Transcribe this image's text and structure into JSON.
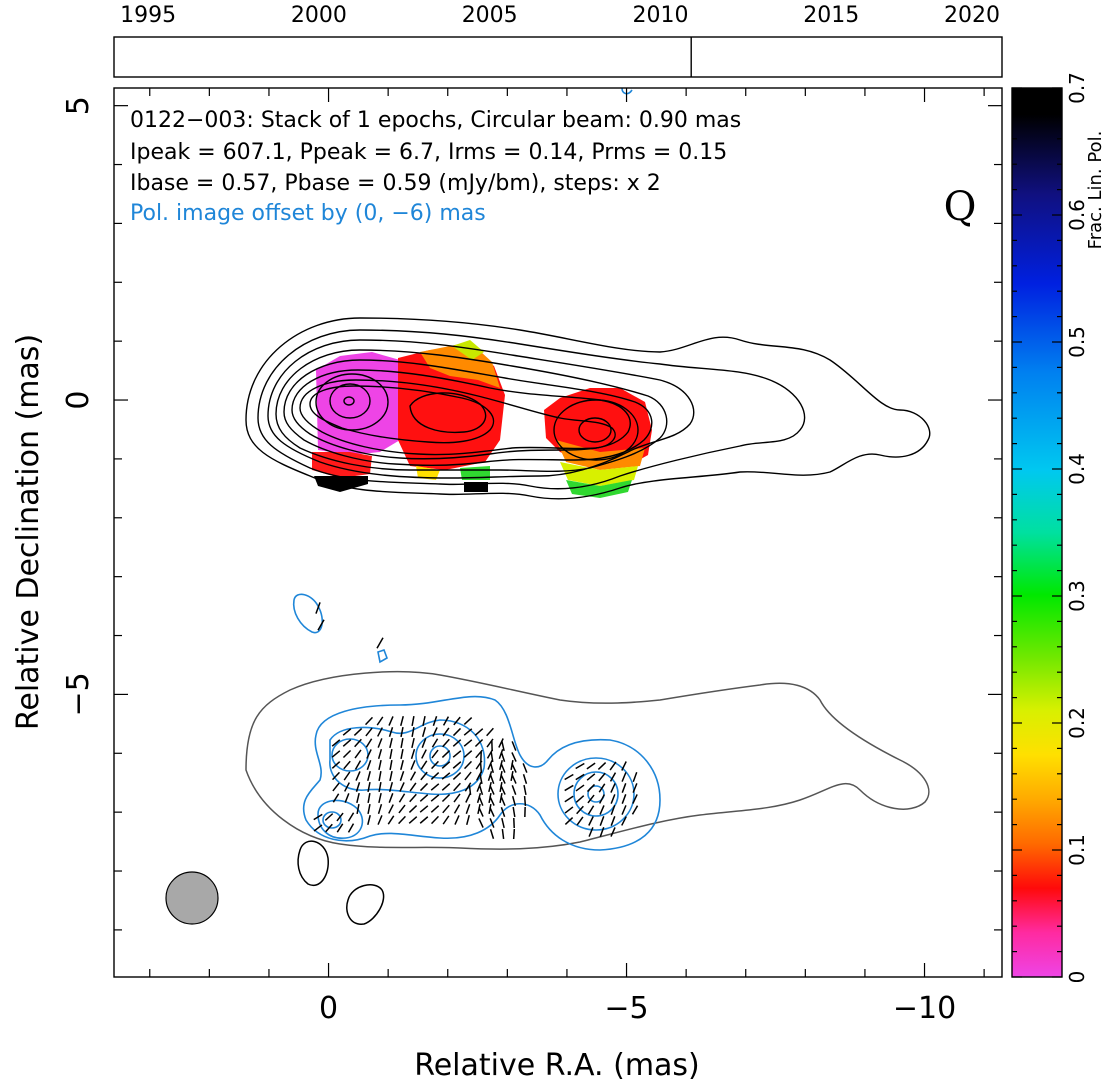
{
  "chart_data": [
    {
      "type": "image",
      "panel": "timeline",
      "x_ticks": [
        1995,
        2000,
        2005,
        2010,
        2015,
        2020
      ],
      "xlim": [
        1994,
        2020
      ],
      "epochs": [
        2010.9
      ]
    },
    {
      "type": "contour",
      "panel": "main",
      "header": [
        "0122−003: Stack of 1 epochs, Circular beam: 0.90 mas",
        "Ipeak = 607.1, Ppeak = 6.7, Irms = 0.14, Prms = 0.15",
        "Ibase = 0.57, Pbase = 0.59 (mJy/bm), steps: x 2"
      ],
      "offset_note": "Pol. image offset by (0, −6) mas",
      "band_label": "Q",
      "xlabel": "Relative R.A. (mas)",
      "ylabel": "Relative Declination (mas)",
      "x_ticks": [
        "0",
        "−5",
        "−10"
      ],
      "x_tick_values": [
        0,
        -5,
        -10
      ],
      "y_ticks": [
        "5",
        "0",
        "−5"
      ],
      "y_tick_values": [
        5,
        0,
        -5
      ],
      "xlim": [
        3.6,
        -11.3
      ],
      "ylim": [
        -9.8,
        5.3
      ],
      "beam_fwhm_mas": 0.9,
      "beam_center": [
        2.3,
        -8.5
      ],
      "components": [
        {
          "name": "core",
          "ra": -0.35,
          "dec": 0.0,
          "frac_pol": 0.0
        },
        {
          "name": "jet1",
          "ra": -1.9,
          "dec": -0.05,
          "frac_pol": 0.08
        },
        {
          "name": "jet2",
          "ra": -4.5,
          "dec": -0.55,
          "frac_pol": 0.1
        }
      ]
    },
    {
      "type": "colorbar",
      "label": "Frac. Lin. Pol.",
      "ticks": [
        "0",
        "0.1",
        "0.2",
        "0.3",
        "0.4",
        "0.5",
        "0.6",
        "0.7"
      ],
      "range": [
        0,
        0.7
      ]
    }
  ],
  "colors": {
    "pol_contour": "#1f86d8",
    "offset_note": "#1f86d8",
    "i_contour": "#000000",
    "ghost_contour": "#555555",
    "beam_fill": "#a8a8a8",
    "colormap": [
      "#ee44e6",
      "#ff2aa0",
      "#ff0a0a",
      "#ff6a00",
      "#ffaa00",
      "#ffe000",
      "#d8f000",
      "#70e800",
      "#00e800",
      "#00e0a0",
      "#00c8f0",
      "#0080f0",
      "#0020e0",
      "#101080",
      "#000000"
    ]
  }
}
